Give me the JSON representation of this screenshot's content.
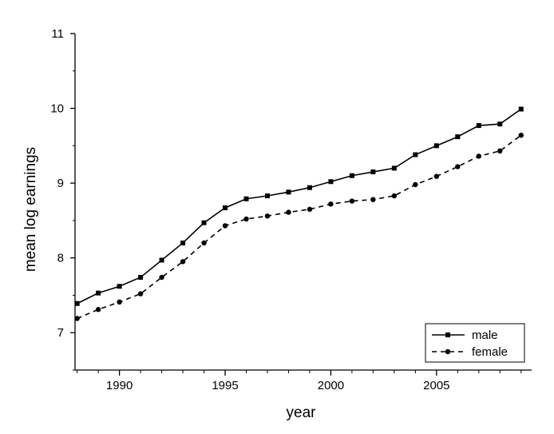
{
  "chart_data": {
    "type": "line",
    "title": "",
    "xlabel": "year",
    "ylabel": "mean log earnings",
    "xlim": [
      1987.9,
      2009.5
    ],
    "ylim": [
      6.5,
      11
    ],
    "xticks": [
      1990,
      1995,
      2000,
      2005
    ],
    "xtick_labels": [
      "1990",
      "1995",
      "2000",
      "2005"
    ],
    "yticks": [
      7,
      8,
      9,
      10,
      11
    ],
    "ytick_labels": [
      "7",
      "8",
      "9",
      "10",
      "11"
    ],
    "grid": false,
    "legend_position": "bottom-right",
    "x": [
      1988,
      1989,
      1990,
      1991,
      1992,
      1993,
      1994,
      1995,
      1996,
      1997,
      1998,
      1999,
      2000,
      2001,
      2002,
      2003,
      2004,
      2005,
      2006,
      2007,
      2008,
      2009
    ],
    "series": [
      {
        "name": "male",
        "line_style": "solid",
        "marker": "square",
        "color": "#000000",
        "values": [
          7.39,
          7.53,
          7.62,
          7.74,
          7.97,
          8.2,
          8.47,
          8.67,
          8.79,
          8.83,
          8.88,
          8.94,
          9.02,
          9.1,
          9.15,
          9.2,
          9.38,
          9.5,
          9.62,
          9.77,
          9.79,
          9.99
        ]
      },
      {
        "name": "female",
        "line_style": "dashed",
        "marker": "circle",
        "color": "#000000",
        "values": [
          7.19,
          7.31,
          7.41,
          7.52,
          7.74,
          7.95,
          8.2,
          8.43,
          8.52,
          8.56,
          8.61,
          8.65,
          8.72,
          8.76,
          8.78,
          8.83,
          8.98,
          9.09,
          9.22,
          9.36,
          9.43,
          9.64
        ]
      }
    ]
  }
}
